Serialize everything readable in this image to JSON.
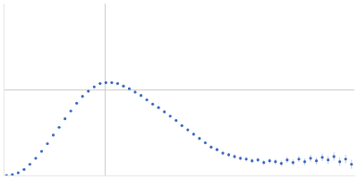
{
  "chart_data": {
    "type": "scatter",
    "color": "#3a68c0",
    "marker": "circle",
    "x": [
      0.05,
      0.15,
      0.25,
      0.35,
      0.45,
      0.55,
      0.65,
      0.75,
      0.85,
      0.95,
      1.05,
      1.15,
      1.25,
      1.35,
      1.45,
      1.55,
      1.65,
      1.75,
      1.85,
      1.95,
      2.05,
      2.15,
      2.25,
      2.35,
      2.45,
      2.55,
      2.65,
      2.75,
      2.85,
      2.95,
      3.05,
      3.15,
      3.25,
      3.35,
      3.45,
      3.55,
      3.65,
      3.75,
      3.85,
      3.95,
      4.05,
      4.15,
      4.25,
      4.35,
      4.45,
      4.55,
      4.65,
      4.75,
      4.85,
      4.95,
      5.05,
      5.15,
      5.25,
      5.35,
      5.45,
      5.55,
      5.65,
      5.75,
      5.85,
      5.95
    ],
    "values": [
      0.0,
      0.01,
      0.03,
      0.07,
      0.13,
      0.2,
      0.28,
      0.37,
      0.47,
      0.56,
      0.66,
      0.75,
      0.84,
      0.92,
      0.98,
      1.03,
      1.07,
      1.08,
      1.08,
      1.07,
      1.04,
      1.01,
      0.97,
      0.93,
      0.88,
      0.83,
      0.79,
      0.74,
      0.69,
      0.64,
      0.58,
      0.53,
      0.48,
      0.43,
      0.38,
      0.33,
      0.3,
      0.26,
      0.24,
      0.22,
      0.2,
      0.19,
      0.17,
      0.18,
      0.15,
      0.17,
      0.16,
      0.14,
      0.18,
      0.15,
      0.19,
      0.16,
      0.2,
      0.17,
      0.21,
      0.18,
      0.22,
      0.16,
      0.19,
      0.13
    ],
    "errors": [
      0.002,
      0.002,
      0.002,
      0.003,
      0.003,
      0.003,
      0.004,
      0.004,
      0.004,
      0.005,
      0.005,
      0.005,
      0.006,
      0.006,
      0.006,
      0.007,
      0.007,
      0.008,
      0.008,
      0.009,
      0.009,
      0.01,
      0.01,
      0.011,
      0.011,
      0.012,
      0.012,
      0.013,
      0.013,
      0.014,
      0.015,
      0.015,
      0.016,
      0.017,
      0.018,
      0.019,
      0.02,
      0.021,
      0.022,
      0.023,
      0.024,
      0.025,
      0.026,
      0.027,
      0.028,
      0.03,
      0.031,
      0.032,
      0.034,
      0.035,
      0.036,
      0.038,
      0.04,
      0.041,
      0.043,
      0.045,
      0.047,
      0.049,
      0.051,
      0.053
    ],
    "xlim": [
      0,
      6
    ],
    "xticks": [
      1.732
    ],
    "ylim": [
      0,
      2
    ],
    "yticks": [
      1
    ],
    "grid": true,
    "tick_labels": false
  }
}
